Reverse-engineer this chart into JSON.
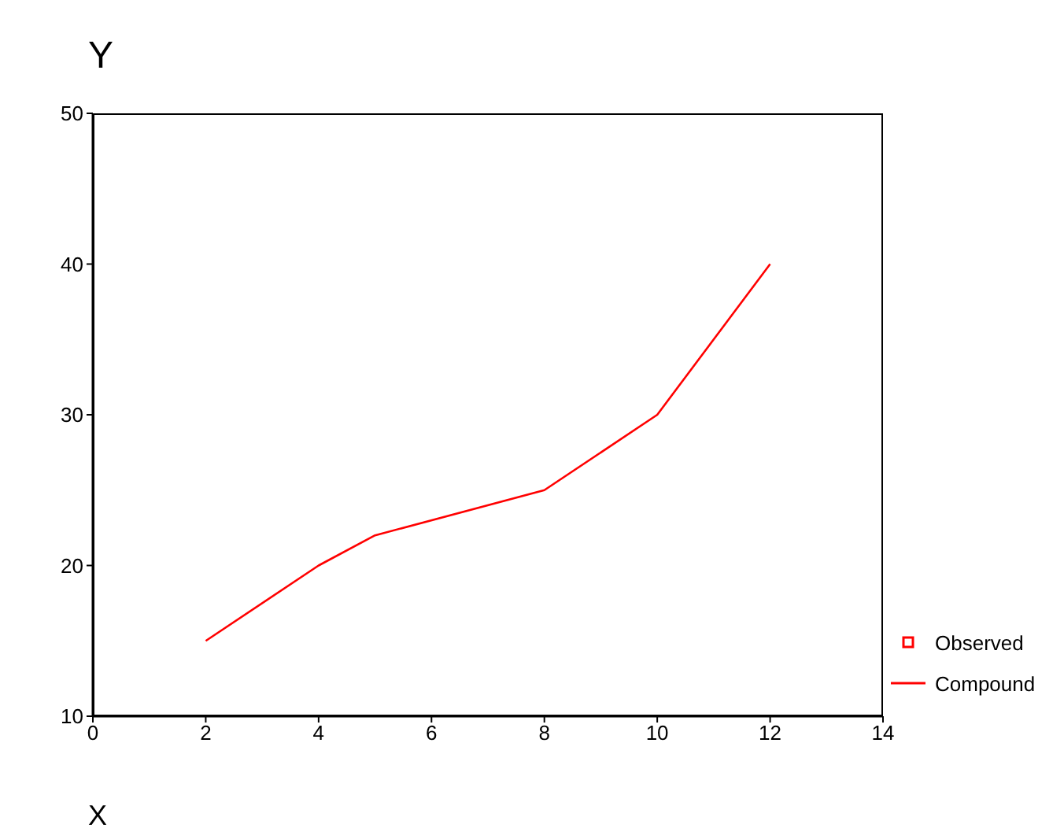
{
  "chart_data": {
    "type": "line",
    "xlabel": "X",
    "ylabel": "Y",
    "x": [
      2,
      4,
      5,
      8,
      10,
      12
    ],
    "xlim": [
      0,
      14
    ],
    "xticks": [
      0,
      2,
      4,
      6,
      8,
      10,
      12,
      14
    ],
    "ylim": [
      10,
      50
    ],
    "yticks": [
      10,
      20,
      30,
      40,
      50
    ],
    "grid": false,
    "legend": "right",
    "series": [
      {
        "name": "Observed",
        "type": "scatter",
        "marker": "square",
        "color": "#ff0000",
        "values": [
          null,
          null,
          null,
          null,
          null,
          null
        ]
      },
      {
        "name": "Compound",
        "marker": "none",
        "color": "#ff0000",
        "values": [
          15,
          20,
          22,
          25,
          30,
          40
        ]
      }
    ]
  }
}
